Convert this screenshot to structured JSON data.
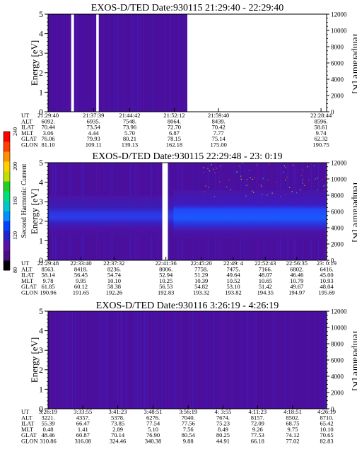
{
  "chart_data": [
    {
      "type": "heatmap",
      "title": "EXOS-D/TED  Date:930115  21:29:40 - 22:29:40",
      "ylabel": "Energy [eV]",
      "ylabel_right": "Temperature [K]",
      "ylim": [
        0,
        5
      ],
      "ylim_right": [
        0,
        12000
      ],
      "y_ticks": [
        "0",
        "1",
        "2",
        "3",
        "4",
        "5"
      ],
      "y_ticks_right": [
        "0",
        "2000",
        "4000",
        "6000",
        "8000",
        "10000",
        "12000"
      ],
      "data_extent": [
        0,
        0.5
      ],
      "gaps": [
        [
          0.083,
          0.093
        ],
        [
          0.173,
          0.182
        ]
      ],
      "row_labels": [
        "UT",
        "ALT",
        "ILAT",
        "MLT",
        "GLAT",
        "GLON"
      ],
      "columns": [
        {
          "pos": 0.0,
          "values": [
            "21:29:40",
            "6092.",
            "70.44",
            "3.06",
            "76.06",
            "81.10"
          ]
        },
        {
          "pos": 0.163,
          "values": [
            "21:37:39",
            "6935.",
            "73.54",
            "4.44",
            "79.93",
            "109.11"
          ]
        },
        {
          "pos": 0.293,
          "values": [
            "21:44:42",
            "7548.",
            "73.96",
            "5.70",
            "80.21",
            "139.13"
          ]
        },
        {
          "pos": 0.453,
          "values": [
            "21:52:12",
            "8064.",
            "72.70",
            "6.87",
            "78.15",
            "162.18"
          ]
        },
        {
          "pos": 0.612,
          "values": [
            "21:59:40",
            "8439.",
            "70.42",
            "7.77",
            "75.14",
            "175.00"
          ]
        },
        {
          "pos": 0.98,
          "values": [
            "22:28:44",
            "8596.",
            "58.61",
            "9.74",
            "62.32",
            "190.75"
          ]
        }
      ]
    },
    {
      "type": "heatmap",
      "title": "EXOS-D/TED  Date:930115  22:29:48 - 23: 0:19",
      "ylabel": "Energy [eV]",
      "ylabel_right": "Temperature [K]",
      "ylim": [
        0,
        5
      ],
      "ylim_right": [
        0,
        12000
      ],
      "y_ticks": [
        "0",
        "1",
        "2",
        "3",
        "4",
        "5"
      ],
      "y_ticks_right": [
        "0",
        "2000",
        "4000",
        "6000",
        "8000",
        "10000",
        "12000"
      ],
      "data_extent": [
        0,
        1
      ],
      "gaps": [
        [
          0.41,
          0.43
        ]
      ],
      "row_labels": [
        "UT",
        "ALT",
        "ILAT",
        "MLT",
        "GLAT",
        "GLON"
      ],
      "columns": [
        {
          "pos": 0.0,
          "values": [
            "22:29:48",
            "8563.",
            "58.14",
            "9.78",
            "61.85",
            "190.96"
          ]
        },
        {
          "pos": 0.118,
          "values": [
            "22:33:40",
            "8418.",
            "56.45",
            "9.95",
            "60.12",
            "191.65"
          ]
        },
        {
          "pos": 0.237,
          "values": [
            "22:37:32",
            "8236.",
            "54.74",
            "10.10",
            "58.38",
            "192.26"
          ]
        },
        {
          "pos": 0.423,
          "values": [
            "22:41:36",
            "8006.",
            "52.94",
            "10.25",
            "56.53",
            "192.83"
          ]
        },
        {
          "pos": 0.55,
          "values": [
            "22:45:20",
            "7758.",
            "51.29",
            "10.39",
            "54.82",
            "193.32"
          ]
        },
        {
          "pos": 0.665,
          "values": [
            "22:49: 4",
            "7475.",
            "49.64",
            "10.52",
            "53.10",
            "193.82"
          ]
        },
        {
          "pos": 0.78,
          "values": [
            "22:52:43",
            "7166.",
            "48.07",
            "10.65",
            "51.42",
            "194.35"
          ]
        },
        {
          "pos": 0.893,
          "values": [
            "22:56:35",
            "6802.",
            "46.46",
            "10.79",
            "49.67",
            "194.97"
          ]
        },
        {
          "pos": 1.0,
          "values": [
            "23: 0:19",
            "6416.",
            "45.00",
            "10.93",
            "48.04",
            "195.69"
          ]
        }
      ]
    },
    {
      "type": "heatmap",
      "title": "EXOS-D/TED  Date:930116  3:26:19 - 4:26:19",
      "ylabel": "Energy [eV]",
      "ylabel_right": "Temperature [K]",
      "ylim": [
        0,
        5
      ],
      "ylim_right": [
        0,
        12000
      ],
      "y_ticks": [
        "0",
        "1",
        "2",
        "3",
        "4",
        "5"
      ],
      "y_ticks_right": [
        "0",
        "2000",
        "4000",
        "6000",
        "8000",
        "10000",
        "12000"
      ],
      "data_extent": [
        0,
        1
      ],
      "gaps": [],
      "row_labels": [
        "UT",
        "ALT",
        "ILAT",
        "MLT",
        "GLAT",
        "GLON"
      ],
      "columns": [
        {
          "pos": 0.0,
          "values": [
            "3:26:19",
            "3221.",
            "55.39",
            "0.48",
            "48.46",
            "310.86"
          ]
        },
        {
          "pos": 0.125,
          "values": [
            "3:33:55",
            "4357.",
            "66.47",
            "1.41",
            "60.87",
            "316.08"
          ]
        },
        {
          "pos": 0.25,
          "values": [
            "3:41:23",
            "5378.",
            "73.85",
            "2.89",
            "70.14",
            "324.46"
          ]
        },
        {
          "pos": 0.377,
          "values": [
            "3:48:51",
            "6276.",
            "77.54",
            "5.10",
            "76.90",
            "340.38"
          ]
        },
        {
          "pos": 0.503,
          "values": [
            "3:56:19",
            "7040.",
            "77.56",
            "7.56",
            "80.54",
            "9.88"
          ]
        },
        {
          "pos": 0.628,
          "values": [
            "4: 3:55",
            "7674.",
            "75.23",
            "8.49",
            "80.25",
            "44.91"
          ]
        },
        {
          "pos": 0.752,
          "values": [
            "4:11:23",
            "8157.",
            "72.09",
            "9.26",
            "77.53",
            "66.18"
          ]
        },
        {
          "pos": 0.878,
          "values": [
            "4:18:51",
            "8502.",
            "68.75",
            "9.75",
            "74.12",
            "77.02"
          ]
        },
        {
          "pos": 1.0,
          "values": [
            "4:26:19",
            "8710.",
            "65.42",
            "10.10",
            "70.65",
            "82.83"
          ]
        }
      ]
    }
  ],
  "colorbar": {
    "label": "Second Harmonic Current",
    "ticks": [
      "80",
      "120",
      "160",
      "200",
      "240"
    ],
    "range": [
      80,
      240
    ],
    "colors": [
      "#000000",
      "#4b0d82",
      "#5a12a5",
      "#2222c8",
      "#0044ff",
      "#0090ff",
      "#00c8c8",
      "#00e07a",
      "#20d020",
      "#c0e000",
      "#ffd000",
      "#ff9000",
      "#ff4000",
      "#ff0000"
    ]
  }
}
